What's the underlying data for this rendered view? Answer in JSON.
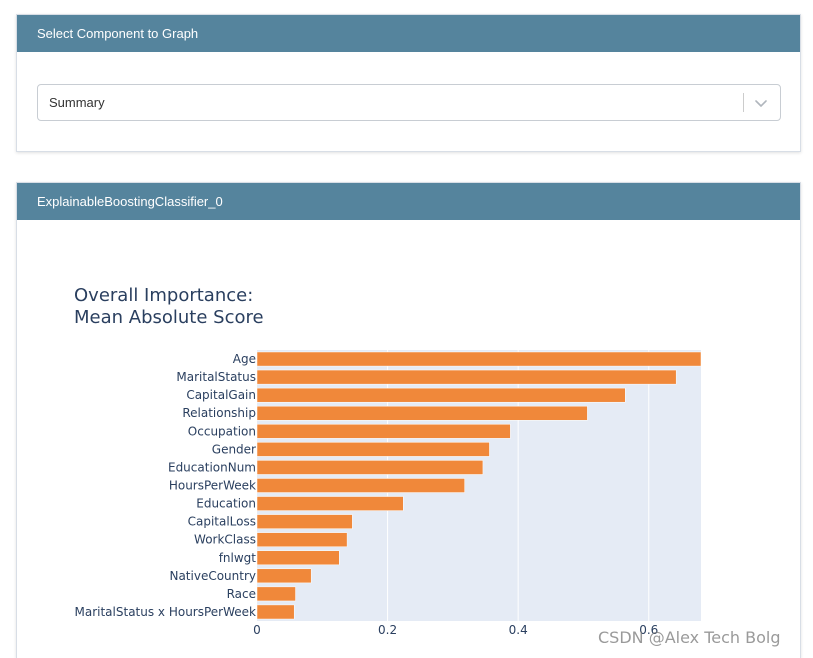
{
  "component_panel": {
    "title": "Select Component to Graph",
    "select_value": "Summary"
  },
  "model_panel": {
    "title": "ExplainableBoostingClassifier_0"
  },
  "chart_data": {
    "type": "bar",
    "orientation": "horizontal",
    "title_line1": "Overall Importance:",
    "title_line2": "Mean Absolute Score",
    "categories": [
      "Age",
      "MaritalStatus",
      "CapitalGain",
      "Relationship",
      "Occupation",
      "Gender",
      "EducationNum",
      "HoursPerWeek",
      "Education",
      "CapitalLoss",
      "WorkClass",
      "fnlwgt",
      "NativeCountry",
      "Race",
      "MaritalStatus x HoursPerWeek"
    ],
    "values": [
      0.68,
      0.642,
      0.564,
      0.506,
      0.388,
      0.356,
      0.346,
      0.318,
      0.224,
      0.146,
      0.138,
      0.126,
      0.083,
      0.059,
      0.057
    ],
    "xticks": [
      0,
      0.2,
      0.4,
      0.6
    ],
    "xtick_labels": [
      "0",
      "0.2",
      "0.4",
      "0.6"
    ],
    "xlim": [
      0,
      0.68
    ],
    "bar_color": "#f0883a",
    "plot_bg": "#e5ebf5"
  },
  "watermark": "CSDN @Alex Tech Bolg"
}
